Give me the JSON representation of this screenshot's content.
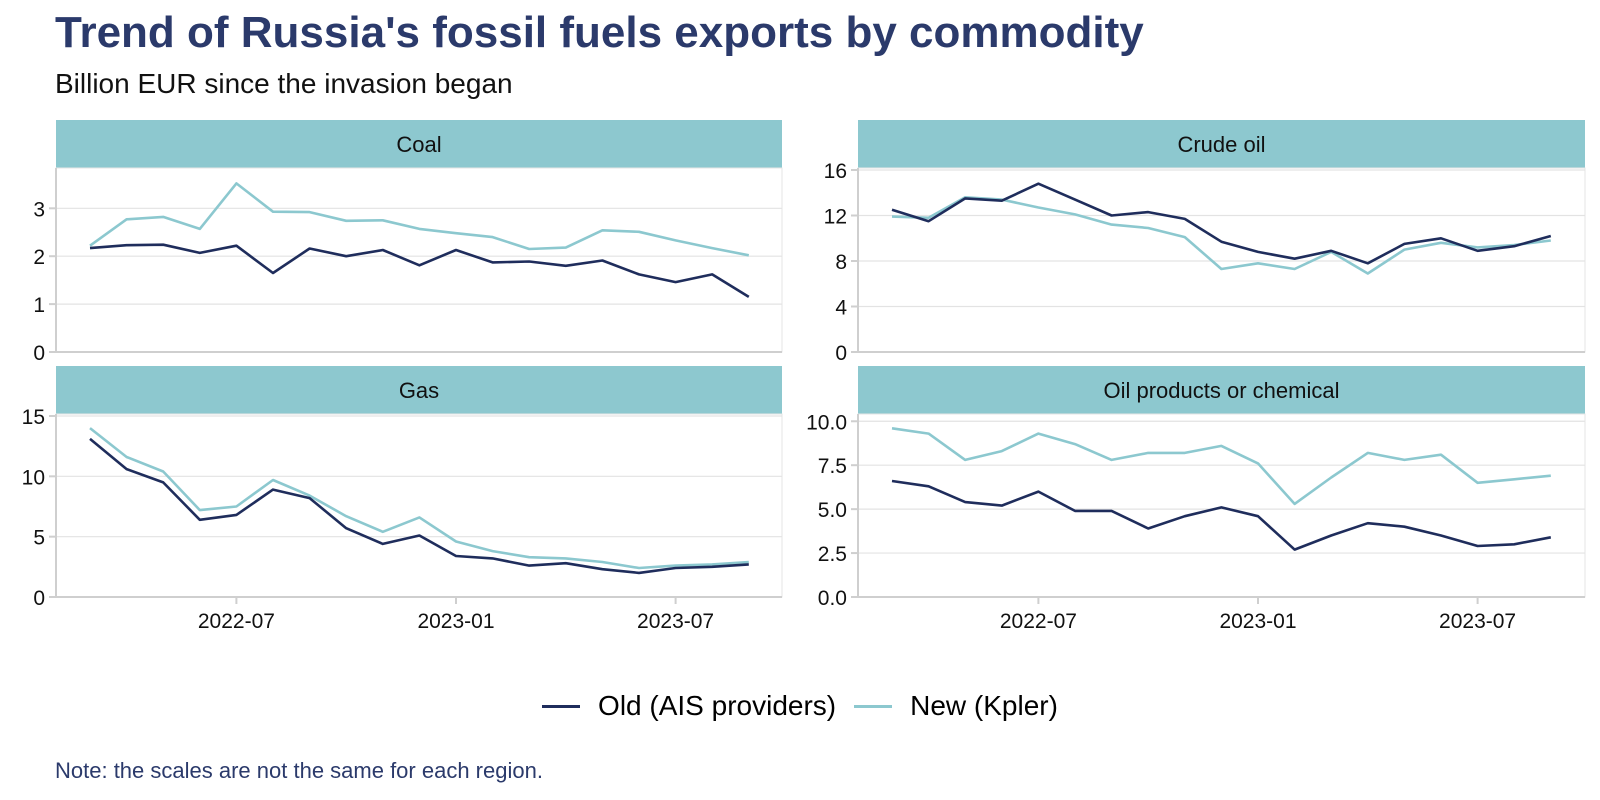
{
  "header": {
    "title": "Trend of Russia's fossil fuels exports by commodity",
    "subtitle": "Billion EUR since the invasion began"
  },
  "legend": {
    "items": [
      {
        "label": "Old (AIS providers)",
        "color": "#1f2d5c"
      },
      {
        "label": "New (Kpler)",
        "color": "#8cc8cf"
      }
    ]
  },
  "note": "Note: the scales are not the same for each region.",
  "colors": {
    "strip": "#8dc8cf",
    "old": "#1f2d5c",
    "new": "#8cc8cf",
    "grid": "#e3e3e3",
    "axis": "#cfcfcf"
  },
  "chart_data": {
    "type": "line",
    "title": "Trend of Russia's fossil fuels exports by commodity",
    "subtitle": "Billion EUR since the invasion began",
    "xlabel": "",
    "ylabel": "",
    "x": [
      "2022-03",
      "2022-04",
      "2022-05",
      "2022-06",
      "2022-07",
      "2022-08",
      "2022-09",
      "2022-10",
      "2022-11",
      "2022-12",
      "2023-01",
      "2023-02",
      "2023-03",
      "2023-04",
      "2023-05",
      "2023-06",
      "2023-07",
      "2023-08",
      "2023-09"
    ],
    "x_ticks": [
      "2022-07",
      "2023-01",
      "2023-07"
    ],
    "legend_position": "bottom",
    "grid": true,
    "panels": [
      {
        "name": "Coal",
        "ylim": [
          0,
          3.8
        ],
        "y_ticks": [
          "0",
          "1",
          "2",
          "3"
        ],
        "y_tick_values": [
          0,
          1,
          2,
          3
        ],
        "series": [
          {
            "name": "Old (AIS providers)",
            "values": [
              2.17,
              2.23,
              2.24,
              2.07,
              2.22,
              1.65,
              2.16,
              2.0,
              2.13,
              1.81,
              2.13,
              1.87,
              1.89,
              1.8,
              1.91,
              1.62,
              1.46,
              1.62,
              1.15
            ]
          },
          {
            "name": "New (Kpler)",
            "values": [
              2.22,
              2.77,
              2.82,
              2.57,
              3.52,
              2.93,
              2.92,
              2.74,
              2.75,
              2.57,
              2.48,
              2.4,
              2.15,
              2.18,
              2.54,
              2.51,
              2.33,
              2.17,
              2.02
            ]
          }
        ]
      },
      {
        "name": "Crude oil",
        "ylim": [
          0,
          16
        ],
        "y_ticks": [
          "0",
          "4",
          "8",
          "12",
          "16"
        ],
        "y_tick_values": [
          0,
          4,
          8,
          12,
          16
        ],
        "series": [
          {
            "name": "Old (AIS providers)",
            "values": [
              12.5,
              11.5,
              13.5,
              13.3,
              14.8,
              13.4,
              12.0,
              12.3,
              11.7,
              9.7,
              8.8,
              8.2,
              8.9,
              7.8,
              9.5,
              10.0,
              8.9,
              9.3,
              10.2
            ]
          },
          {
            "name": "New (Kpler)",
            "values": [
              11.9,
              11.8,
              13.6,
              13.4,
              12.7,
              12.1,
              11.2,
              10.9,
              10.1,
              7.3,
              7.8,
              7.3,
              8.8,
              6.9,
              9.0,
              9.6,
              9.2,
              9.4,
              9.8
            ]
          }
        ]
      },
      {
        "name": "Gas",
        "ylim": [
          0,
          15
        ],
        "y_ticks": [
          "0",
          "5",
          "10",
          "15"
        ],
        "y_tick_values": [
          0,
          5,
          10,
          15
        ],
        "series": [
          {
            "name": "Old (AIS providers)",
            "values": [
              13.1,
              10.6,
              9.5,
              6.4,
              6.8,
              8.9,
              8.2,
              5.7,
              4.4,
              5.1,
              3.4,
              3.2,
              2.6,
              2.8,
              2.3,
              2.0,
              2.4,
              2.5,
              2.7
            ]
          },
          {
            "name": "New (Kpler)",
            "values": [
              14.0,
              11.6,
              10.4,
              7.2,
              7.5,
              9.7,
              8.4,
              6.7,
              5.4,
              6.6,
              4.6,
              3.8,
              3.3,
              3.2,
              2.9,
              2.4,
              2.6,
              2.7,
              2.9
            ]
          }
        ]
      },
      {
        "name": "Oil products or chemical",
        "ylim": [
          0,
          10.3
        ],
        "y_ticks": [
          "0.0",
          "2.5",
          "5.0",
          "7.5",
          "10.0"
        ],
        "y_tick_values": [
          0,
          2.5,
          5,
          7.5,
          10
        ],
        "series": [
          {
            "name": "Old (AIS providers)",
            "values": [
              6.6,
              6.3,
              5.4,
              5.2,
              6.0,
              4.9,
              4.9,
              3.9,
              4.6,
              5.1,
              4.6,
              2.7,
              3.5,
              4.2,
              4.0,
              3.5,
              2.9,
              3.0,
              3.4
            ]
          },
          {
            "name": "New (Kpler)",
            "values": [
              9.6,
              9.3,
              7.8,
              8.3,
              9.3,
              8.7,
              7.8,
              8.2,
              8.2,
              8.6,
              7.6,
              5.3,
              6.8,
              8.2,
              7.8,
              8.1,
              6.5,
              6.7,
              6.9
            ]
          }
        ]
      }
    ]
  }
}
